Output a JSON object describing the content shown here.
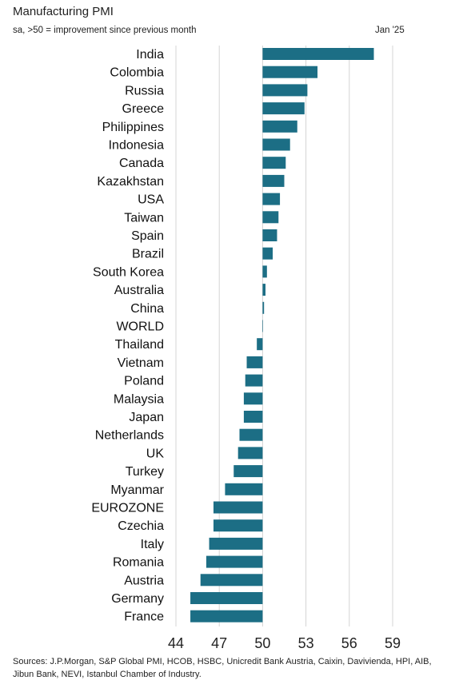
{
  "header": {
    "title": "Manufacturing PMI",
    "subtitle": "sa, >50 = improvement since previous month",
    "date": "Jan '25"
  },
  "footer": {
    "source": "Sources: J.P.Morgan, S&P Global PMI, HCOB, HSBC, Unicredit Bank Austria, Caixin, Davivienda, HPI, AIB, Jibun Bank, NEVI, Istanbul Chamber of Industry."
  },
  "chart_data": {
    "type": "bar",
    "orientation": "horizontal",
    "title": "Manufacturing PMI",
    "subtitle": "sa, >50 = improvement since previous month",
    "baseline": 50,
    "xlim": [
      44,
      59
    ],
    "xticks": [
      44,
      47,
      50,
      53,
      56,
      59
    ],
    "grid": true,
    "bar_color": "#1c6e85",
    "categories": [
      "India",
      "Colombia",
      "Russia",
      "Greece",
      "Philippines",
      "Indonesia",
      "Canada",
      "Kazakhstan",
      "USA",
      "Taiwan",
      "Spain",
      "Brazil",
      "South Korea",
      "Australia",
      "China",
      "WORLD",
      "Thailand",
      "Vietnam",
      "Poland",
      "Malaysia",
      "Japan",
      "Netherlands",
      "UK",
      "Turkey",
      "Myanmar",
      "EUROZONE",
      "Czechia",
      "Italy",
      "Romania",
      "Austria",
      "Germany",
      "France"
    ],
    "values": [
      57.7,
      53.8,
      53.1,
      52.9,
      52.4,
      51.9,
      51.6,
      51.5,
      51.2,
      51.1,
      51.0,
      50.7,
      50.3,
      50.2,
      50.1,
      50.0,
      49.6,
      48.9,
      48.8,
      48.7,
      48.7,
      48.4,
      48.3,
      48.0,
      47.4,
      46.6,
      46.6,
      46.3,
      46.1,
      45.7,
      45.0,
      45.0
    ]
  }
}
